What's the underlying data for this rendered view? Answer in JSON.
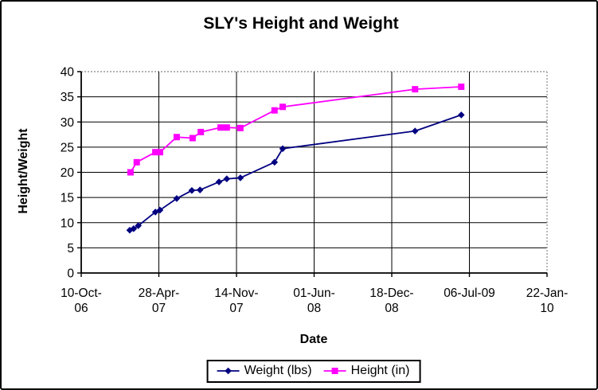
{
  "window": {
    "background": "#ffffff",
    "border_color": "#000000"
  },
  "chart_data": {
    "type": "line",
    "title": "SLY's Height and Weight",
    "xlabel": "Date",
    "ylabel": "Height/Weight",
    "ylim": [
      0,
      40
    ],
    "y_tick_step": 5,
    "x_start": "2006-10-10",
    "x_end": "2010-01-22",
    "x_tick_interval_days": 200,
    "grid": true,
    "legend_position": "bottom",
    "colors": {
      "gridline": "#000000",
      "plot_border_dashed": "#999999",
      "axis": "#000000",
      "text": "#000000"
    },
    "x_ticks": [
      {
        "date": "2006-10-10",
        "lines": [
          "10-Oct-",
          "06"
        ]
      },
      {
        "date": "2007-04-28",
        "lines": [
          "28-Apr-",
          "07"
        ]
      },
      {
        "date": "2007-11-14",
        "lines": [
          "14-Nov-",
          "07"
        ]
      },
      {
        "date": "2008-06-01",
        "lines": [
          "01-Jun-",
          "08"
        ]
      },
      {
        "date": "2008-12-18",
        "lines": [
          "18-Dec-",
          "08"
        ]
      },
      {
        "date": "2009-07-06",
        "lines": [
          "06-Jul-09"
        ]
      },
      {
        "date": "2010-01-22",
        "lines": [
          "22-Jan-",
          "10"
        ]
      }
    ],
    "series": [
      {
        "name": "Weight (lbs)",
        "color": "#000080",
        "marker": "diamond",
        "points": [
          {
            "date": "2007-02-12",
            "value": 8.5
          },
          {
            "date": "2007-02-22",
            "value": 8.8
          },
          {
            "date": "2007-03-06",
            "value": 9.4
          },
          {
            "date": "2007-04-19",
            "value": 12.1
          },
          {
            "date": "2007-05-01",
            "value": 12.5
          },
          {
            "date": "2007-06-13",
            "value": 14.8
          },
          {
            "date": "2007-07-22",
            "value": 16.4
          },
          {
            "date": "2007-08-12",
            "value": 16.5
          },
          {
            "date": "2007-09-30",
            "value": 18.1
          },
          {
            "date": "2007-10-20",
            "value": 18.7
          },
          {
            "date": "2007-11-24",
            "value": 18.9
          },
          {
            "date": "2008-02-20",
            "value": 22.0
          },
          {
            "date": "2008-03-12",
            "value": 24.7
          },
          {
            "date": "2009-02-16",
            "value": 28.2
          },
          {
            "date": "2009-06-15",
            "value": 31.4
          }
        ]
      },
      {
        "name": "Height (in)",
        "color": "#FF00FF",
        "marker": "square",
        "points": [
          {
            "date": "2007-02-14",
            "value": 20.0
          },
          {
            "date": "2007-03-02",
            "value": 22.0
          },
          {
            "date": "2007-04-19",
            "value": 24.0
          },
          {
            "date": "2007-05-01",
            "value": 24.0
          },
          {
            "date": "2007-06-13",
            "value": 27.0
          },
          {
            "date": "2007-07-24",
            "value": 26.8
          },
          {
            "date": "2007-08-14",
            "value": 28.0
          },
          {
            "date": "2007-10-04",
            "value": 28.9
          },
          {
            "date": "2007-10-20",
            "value": 28.9
          },
          {
            "date": "2007-11-24",
            "value": 28.8
          },
          {
            "date": "2008-02-20",
            "value": 32.3
          },
          {
            "date": "2008-03-12",
            "value": 33.0
          },
          {
            "date": "2009-02-16",
            "value": 36.5
          },
          {
            "date": "2009-06-15",
            "value": 37.0
          }
        ]
      }
    ]
  }
}
